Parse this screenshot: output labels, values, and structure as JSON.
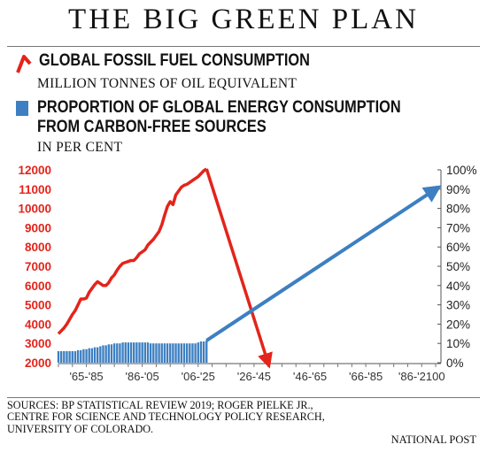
{
  "header": {
    "title": "THE BIG GREEN PLAN"
  },
  "legend": {
    "fossil": {
      "label": "GLOBAL FOSSIL FUEL CONSUMPTION",
      "unit": "MILLION TONNES OF OIL EQUIVALENT",
      "color": "#e3241b"
    },
    "carbon_free": {
      "label_line1": "PROPORTION OF GLOBAL ENERGY CONSUMPTION",
      "label_line2": "FROM CARBON-FREE SOURCES",
      "unit": "IN PER CENT",
      "color": "#3d7fc1"
    }
  },
  "footer": {
    "sources": "SOURCES: BP STATISTICAL REVIEW 2019; ROGER PIELKE JR., CENTRE FOR SCIENCE AND TECHNOLOGY POLICY RESEARCH, UNIVERSITY OF COLORADO.",
    "credit": "NATIONAL POST"
  },
  "chart_data": {
    "type": "line",
    "x_ticks": [
      "'65-'85",
      "'86-'05",
      "'06-'25",
      "'26-'45",
      "'46-'65",
      "'66-'85",
      "'86-'2100"
    ],
    "x_range": [
      1965,
      2100
    ],
    "y_left": {
      "ticks": [
        2000,
        3000,
        4000,
        5000,
        6000,
        7000,
        8000,
        9000,
        10000,
        11000,
        12000
      ],
      "range": [
        2000,
        12000
      ],
      "color": "#e3241b"
    },
    "y_right": {
      "ticks": [
        "0%",
        "10%",
        "20%",
        "30%",
        "40%",
        "50%",
        "60%",
        "70%",
        "80%",
        "90%",
        "100%"
      ],
      "range": [
        0,
        100
      ]
    },
    "series": [
      {
        "name": "GLOBAL FOSSIL FUEL CONSUMPTION",
        "type": "line",
        "axis": "left",
        "color": "#e3241b",
        "x": [
          1965,
          1966,
          1967,
          1968,
          1969,
          1970,
          1971,
          1972,
          1973,
          1974,
          1975,
          1976,
          1977,
          1978,
          1979,
          1980,
          1981,
          1982,
          1983,
          1984,
          1985,
          1986,
          1987,
          1988,
          1989,
          1990,
          1991,
          1992,
          1993,
          1994,
          1995,
          1996,
          1997,
          1998,
          1999,
          2000,
          2001,
          2002,
          2003,
          2004,
          2005,
          2006,
          2007,
          2008,
          2009,
          2010,
          2011,
          2012,
          2013,
          2014,
          2015,
          2016,
          2017,
          2018
        ],
        "y": [
          3500,
          3650,
          3800,
          4000,
          4250,
          4500,
          4700,
          5000,
          5300,
          5300,
          5350,
          5650,
          5850,
          6050,
          6200,
          6100,
          6000,
          6000,
          6150,
          6400,
          6550,
          6800,
          7000,
          7150,
          7200,
          7250,
          7300,
          7300,
          7450,
          7650,
          7750,
          7850,
          8100,
          8250,
          8400,
          8600,
          8800,
          9150,
          9650,
          10100,
          10350,
          10200,
          10700,
          10900,
          11100,
          11200,
          11250,
          11350,
          11450,
          11550,
          11650,
          11800,
          11950,
          12050
        ]
      },
      {
        "name": "GLOBAL FOSSIL FUEL CONSUMPTION (projection)",
        "type": "arrow",
        "axis": "left",
        "color": "#e3241b",
        "x": [
          2018,
          2040
        ],
        "y": [
          12050,
          2000
        ]
      },
      {
        "name": "PROPORTION OF GLOBAL ENERGY CONSUMPTION FROM CARBON-FREE SOURCES",
        "type": "bar",
        "axis": "right",
        "color": "#3d7fc1",
        "x": [
          1965,
          1966,
          1967,
          1968,
          1969,
          1970,
          1971,
          1972,
          1973,
          1974,
          1975,
          1976,
          1977,
          1978,
          1979,
          1980,
          1981,
          1982,
          1983,
          1984,
          1985,
          1986,
          1987,
          1988,
          1989,
          1990,
          1991,
          1992,
          1993,
          1994,
          1995,
          1996,
          1997,
          1998,
          1999,
          2000,
          2001,
          2002,
          2003,
          2004,
          2005,
          2006,
          2007,
          2008,
          2009,
          2010,
          2011,
          2012,
          2013,
          2014,
          2015,
          2016,
          2017,
          2018
        ],
        "y": [
          6,
          6,
          6,
          6,
          6,
          6,
          6,
          6.5,
          6.5,
          7,
          7,
          7.5,
          7.5,
          8,
          8,
          8.5,
          9,
          9,
          9.5,
          9.5,
          10,
          10,
          10,
          10.5,
          10.5,
          10.5,
          10.5,
          10.5,
          10.5,
          10.5,
          10.5,
          10.5,
          10.5,
          10,
          10,
          10,
          10,
          10,
          10,
          10,
          10,
          10,
          10,
          10,
          10,
          10,
          10,
          10,
          10,
          10,
          10.5,
          11,
          11,
          11.5
        ]
      },
      {
        "name": "PROPORTION OF GLOBAL ENERGY CONSUMPTION FROM CARBON-FREE SOURCES (projection)",
        "type": "arrow",
        "axis": "right",
        "color": "#3d7fc1",
        "x": [
          2018,
          2100
        ],
        "y": [
          11.5,
          90
        ]
      }
    ]
  }
}
